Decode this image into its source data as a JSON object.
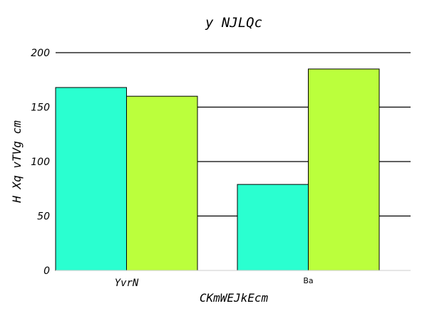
{
  "chart_data": {
    "type": "bar",
    "title": "y NJLQc",
    "xlabel": "CKmWEJkEcm",
    "ylabel": "H Xq vTVg cm",
    "categories": [
      "YvrN",
      "Ba"
    ],
    "series": [
      {
        "values": [
          168,
          79
        ],
        "color": "#2affd0"
      },
      {
        "values": [
          160,
          185
        ],
        "color": "#bbff3c"
      }
    ],
    "ylim": [
      0,
      200
    ],
    "yticks": [
      0,
      50,
      100,
      150,
      200
    ],
    "grid": true,
    "legend": "none"
  }
}
